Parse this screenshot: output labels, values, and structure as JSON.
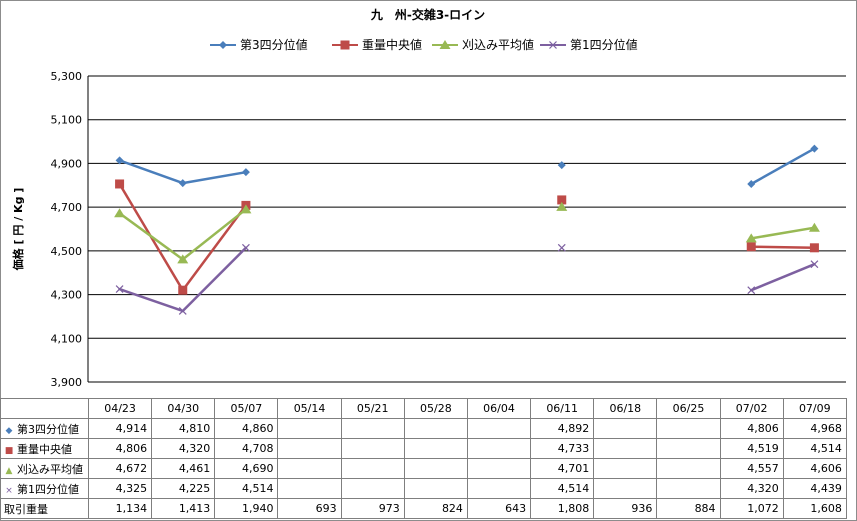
{
  "chart_data": {
    "type": "line",
    "title": "九　州-交雑3-ロイン",
    "ylabel": "価格 [ 円 / Kg ]",
    "ylim": [
      3900,
      5300
    ],
    "yticks": [
      3900,
      4100,
      4300,
      4500,
      4700,
      4900,
      5100,
      5300
    ],
    "ytick_labels": [
      "3,900",
      "4,100",
      "4,300",
      "4,500",
      "4,700",
      "4,900",
      "5,100",
      "5,300"
    ],
    "grid": true,
    "legend": "top",
    "categories": [
      "04/23",
      "04/30",
      "05/07",
      "05/14",
      "05/21",
      "05/28",
      "06/04",
      "06/11",
      "06/18",
      "06/25",
      "07/02",
      "07/09"
    ],
    "series": [
      {
        "name": "第3四分位値",
        "color": "#4a7ebb",
        "marker": "diamond",
        "values": [
          4914,
          4810,
          4860,
          null,
          null,
          null,
          null,
          4892,
          null,
          null,
          4806,
          4968
        ],
        "labels": [
          "4,914",
          "4,810",
          "4,860",
          "",
          "",
          "",
          "",
          "4,892",
          "",
          "",
          "4,806",
          "4,968"
        ]
      },
      {
        "name": "重量中央値",
        "color": "#be4b48",
        "marker": "square",
        "values": [
          4806,
          4320,
          4708,
          null,
          null,
          null,
          null,
          4733,
          null,
          null,
          4519,
          4514
        ],
        "labels": [
          "4,806",
          "4,320",
          "4,708",
          "",
          "",
          "",
          "",
          "4,733",
          "",
          "",
          "4,519",
          "4,514"
        ]
      },
      {
        "name": "刈込み平均値",
        "color": "#98b954",
        "marker": "triangle",
        "values": [
          4672,
          4461,
          4690,
          null,
          null,
          null,
          null,
          4701,
          null,
          null,
          4557,
          4606
        ],
        "labels": [
          "4,672",
          "4,461",
          "4,690",
          "",
          "",
          "",
          "",
          "4,701",
          "",
          "",
          "4,557",
          "4,606"
        ]
      },
      {
        "name": "第1四分位値",
        "color": "#7d60a0",
        "marker": "x",
        "values": [
          4325,
          4225,
          4514,
          null,
          null,
          null,
          null,
          4514,
          null,
          null,
          4320,
          4439
        ],
        "labels": [
          "4,325",
          "4,225",
          "4,514",
          "",
          "",
          "",
          "",
          "4,514",
          "",
          "",
          "4,320",
          "4,439"
        ]
      }
    ],
    "table_extra_row": {
      "name": "取引重量",
      "labels": [
        "1,134",
        "1,413",
        "1,940",
        "693",
        "973",
        "824",
        "643",
        "1,808",
        "936",
        "884",
        "1,072",
        "1,608"
      ]
    }
  }
}
